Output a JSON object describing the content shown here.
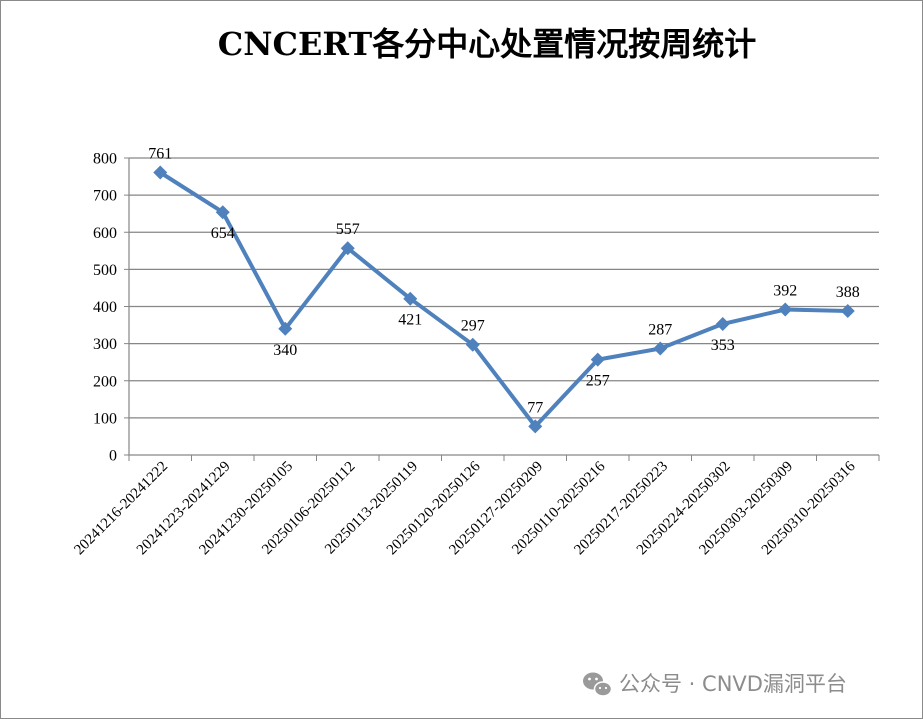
{
  "chart_data": {
    "type": "line",
    "title": "CNCERT各分中心处置情况按周统计",
    "categories": [
      "20241216-20241222",
      "20241223-20241229",
      "20241230-20250105",
      "20250106-20250112",
      "20250113-20250119",
      "20250120-20250126",
      "20250127-20250209",
      "20250110-20250216",
      "20250217-20250223",
      "20250224-20250302",
      "20250303-20250309",
      "20250310-20250316"
    ],
    "series": [
      {
        "values": [
          761,
          654,
          340,
          557,
          421,
          297,
          77,
          257,
          287,
          353,
          392,
          388
        ],
        "color": "#4f81bd",
        "marker": "diamond"
      }
    ],
    "label_placement": [
      "above",
      "below",
      "below",
      "above",
      "below",
      "above",
      "above",
      "below",
      "above",
      "below",
      "above",
      "above"
    ],
    "ylim": [
      0,
      800
    ],
    "yticks": [
      0,
      100,
      200,
      300,
      400,
      500,
      600,
      700,
      800
    ],
    "grid": true,
    "legend": "none"
  },
  "watermark": {
    "icon": "wechat-icon",
    "text": "公众号 · CNVD漏洞平台"
  }
}
